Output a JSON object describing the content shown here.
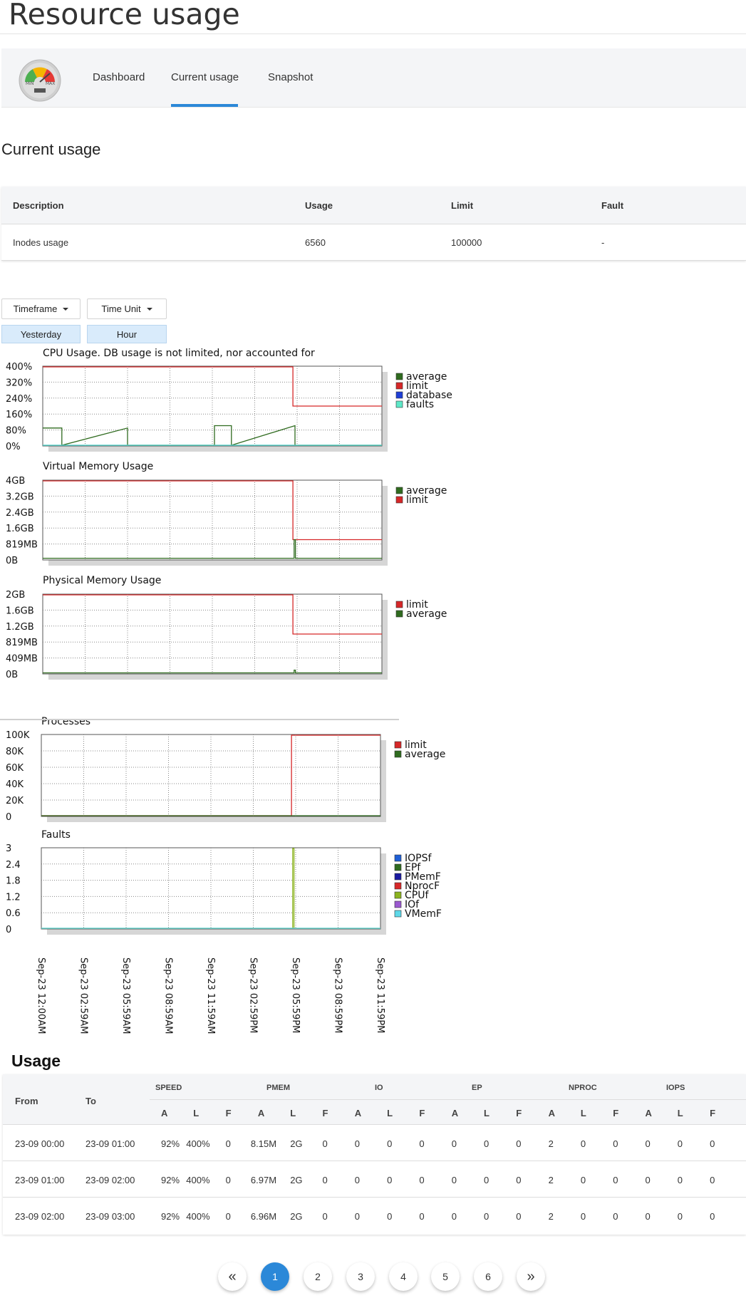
{
  "page": {
    "title": "Resource usage"
  },
  "nav": {
    "tabs": [
      "Dashboard",
      "Current usage",
      "Snapshot"
    ],
    "active_tab": "Current usage",
    "logo_labels": {
      "min": "MIN",
      "max": "MAX"
    }
  },
  "current_usage": {
    "heading": "Current usage",
    "columns": [
      "Description",
      "Usage",
      "Limit",
      "Fault"
    ],
    "rows": [
      {
        "description": "Inodes usage",
        "usage": "6560",
        "limit": "100000",
        "fault": "-"
      }
    ]
  },
  "filters": {
    "timeframe_label": "Timeframe",
    "timeunit_label": "Time Unit",
    "timeframe_value": "Yesterday",
    "timeunit_value": "Hour"
  },
  "colors": {
    "average": "#2f6b1f",
    "limit": "#d62728",
    "database": "#1f3fd6",
    "faults": "#5ee8c8",
    "accent": "#2b88d8"
  },
  "chart_data": [
    {
      "type": "line",
      "title": "CPU Usage. DB usage is not limited, nor accounted for",
      "yticks": [
        "400%",
        "320%",
        "240%",
        "160%",
        "80%",
        "0%"
      ],
      "ylim": [
        0,
        400
      ],
      "legend": [
        "average",
        "limit",
        "database",
        "faults"
      ],
      "legend_position": "right",
      "grid": true,
      "series": [
        {
          "name": "average",
          "x": [
            0,
            0.45,
            0.45,
            2,
            2,
            4.05,
            4.05,
            4.45,
            4.45,
            5.95,
            5.95,
            8
          ],
          "y": [
            88,
            88,
            0,
            88,
            0,
            0,
            100,
            100,
            0,
            100,
            0,
            0
          ]
        },
        {
          "name": "limit",
          "x": [
            0,
            5.9,
            5.9,
            8
          ],
          "y": [
            400,
            400,
            200,
            200
          ]
        },
        {
          "name": "database",
          "x": [
            0,
            8
          ],
          "y": [
            0,
            0
          ]
        },
        {
          "name": "faults",
          "x": [
            0,
            8
          ],
          "y": [
            0,
            0
          ]
        }
      ]
    },
    {
      "type": "line",
      "title": "Virtual Memory Usage",
      "yticks": [
        "4GB",
        "3.2GB",
        "2.4GB",
        "1.6GB",
        "819MB",
        "0B"
      ],
      "ylim": [
        0,
        4
      ],
      "legend": [
        "average",
        "limit"
      ],
      "legend_position": "right",
      "grid": true,
      "series": [
        {
          "name": "limit",
          "x": [
            0,
            5.9,
            5.9,
            8
          ],
          "y": [
            4,
            4,
            1,
            1
          ]
        },
        {
          "name": "average",
          "x": [
            0,
            5.93,
            5.93,
            5.96,
            5.96,
            8
          ],
          "y": [
            0.05,
            0.05,
            1,
            1,
            0.05,
            0.05
          ]
        }
      ]
    },
    {
      "type": "line",
      "title": "Physical Memory Usage",
      "yticks": [
        "2GB",
        "1.6GB",
        "1.2GB",
        "819MB",
        "409MB",
        "0B"
      ],
      "ylim": [
        0,
        2
      ],
      "legend": [
        "limit",
        "average"
      ],
      "legend_position": "right",
      "grid": true,
      "series": [
        {
          "name": "limit",
          "x": [
            0,
            5.9,
            5.9,
            8
          ],
          "y": [
            2,
            2,
            1,
            1
          ]
        },
        {
          "name": "average",
          "x": [
            0,
            5.93,
            5.93,
            5.96,
            5.96,
            8
          ],
          "y": [
            0.01,
            0.01,
            0.08,
            0.08,
            0.01,
            0.01
          ]
        }
      ]
    },
    {
      "type": "line",
      "title": "Processes",
      "yticks": [
        "100K",
        "80K",
        "60K",
        "40K",
        "20K",
        "0"
      ],
      "ylim": [
        0,
        100000
      ],
      "legend": [
        "limit",
        "average"
      ],
      "legend_position": "right",
      "grid": true,
      "series": [
        {
          "name": "limit",
          "x": [
            0,
            5.9,
            5.9,
            8
          ],
          "y": [
            0,
            0,
            100000,
            100000
          ]
        },
        {
          "name": "average",
          "x": [
            0,
            8
          ],
          "y": [
            0,
            0
          ]
        }
      ]
    },
    {
      "type": "line",
      "title": "Faults",
      "yticks": [
        "3",
        "2.4",
        "1.8",
        "1.2",
        "0.6",
        "0"
      ],
      "ylim": [
        0,
        3
      ],
      "legend": [
        "IOPSf",
        "EPf",
        "PMemF",
        "NprocF",
        "CPUf",
        "IOf",
        "VMemF"
      ],
      "legend_position": "right",
      "grid": true,
      "legend_colors": [
        "#1f5fd6",
        "#2f6b1f",
        "#1a1aa0",
        "#d62728",
        "#8bb31f",
        "#9b59d0",
        "#5ed8e8"
      ],
      "series": [
        {
          "name": "CPUf",
          "x": [
            0,
            5.93,
            5.93,
            5.96,
            5.96,
            8
          ],
          "y": [
            0,
            0,
            3,
            3,
            0,
            0
          ]
        },
        {
          "name": "VMemF",
          "x": [
            0,
            8
          ],
          "y": [
            0,
            0
          ]
        }
      ],
      "xticks": [
        "Sep-23 12:00AM",
        "Sep-23 02:59AM",
        "Sep-23 05:59AM",
        "Sep-23 08:59AM",
        "Sep-23 11:59AM",
        "Sep-23 02:59PM",
        "Sep-23 05:59PM",
        "Sep-23 08:59PM",
        "Sep-23 11:59PM"
      ]
    }
  ],
  "usage_table": {
    "heading": "Usage",
    "from_label": "From",
    "to_label": "To",
    "groups": [
      "SPEED",
      "PMEM",
      "IO",
      "EP",
      "NPROC",
      "IOPS"
    ],
    "sub": [
      "A",
      "L",
      "F"
    ],
    "rows": [
      {
        "from": "23-09 00:00",
        "to": "23-09 01:00",
        "cells": [
          "92%",
          "400%",
          "0",
          "8.15M",
          "2G",
          "0",
          "0",
          "0",
          "0",
          "0",
          "0",
          "0",
          "2",
          "0",
          "0",
          "0",
          "0",
          "0"
        ]
      },
      {
        "from": "23-09 01:00",
        "to": "23-09 02:00",
        "cells": [
          "92%",
          "400%",
          "0",
          "6.97M",
          "2G",
          "0",
          "0",
          "0",
          "0",
          "0",
          "0",
          "0",
          "2",
          "0",
          "0",
          "0",
          "0",
          "0"
        ]
      },
      {
        "from": "23-09 02:00",
        "to": "23-09 03:00",
        "cells": [
          "92%",
          "400%",
          "0",
          "6.96M",
          "2G",
          "0",
          "0",
          "0",
          "0",
          "0",
          "0",
          "0",
          "2",
          "0",
          "0",
          "0",
          "0",
          "0"
        ]
      }
    ]
  },
  "pagination": {
    "prev": "«",
    "pages": [
      "1",
      "2",
      "3",
      "4",
      "5",
      "6"
    ],
    "next": "»",
    "current": "1"
  }
}
